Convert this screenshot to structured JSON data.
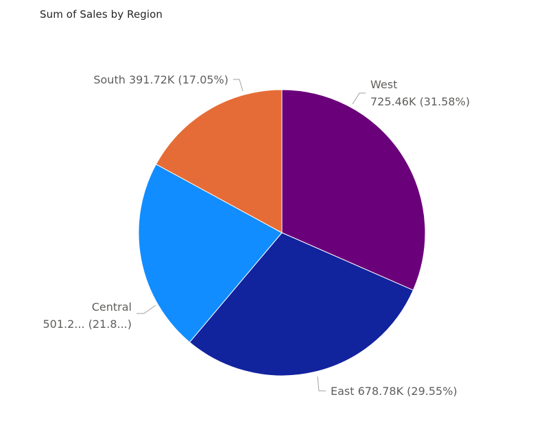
{
  "chart_data": {
    "type": "pie",
    "title": "Sum of Sales by Region",
    "categories": [
      "West",
      "East",
      "Central",
      "South"
    ],
    "values": [
      725.46,
      678.78,
      501.24,
      391.72
    ],
    "unit": "K",
    "percents": [
      31.58,
      29.55,
      21.82,
      17.05
    ],
    "colors": [
      "#6B007B",
      "#12239E",
      "#118DFF",
      "#E66C37"
    ],
    "labels": [
      {
        "category": "West",
        "line1": "West",
        "line2": "725.46K (31.58%)"
      },
      {
        "category": "East",
        "line1": "East 678.78K (29.55%)",
        "line2": ""
      },
      {
        "category": "Central",
        "line1": "Central",
        "line2": "501.2... (21.8...)"
      },
      {
        "category": "South",
        "line1": "South 391.72K (17.05%)",
        "line2": ""
      }
    ],
    "start_angle": "top",
    "direction": "clockwise",
    "legend": "none"
  }
}
